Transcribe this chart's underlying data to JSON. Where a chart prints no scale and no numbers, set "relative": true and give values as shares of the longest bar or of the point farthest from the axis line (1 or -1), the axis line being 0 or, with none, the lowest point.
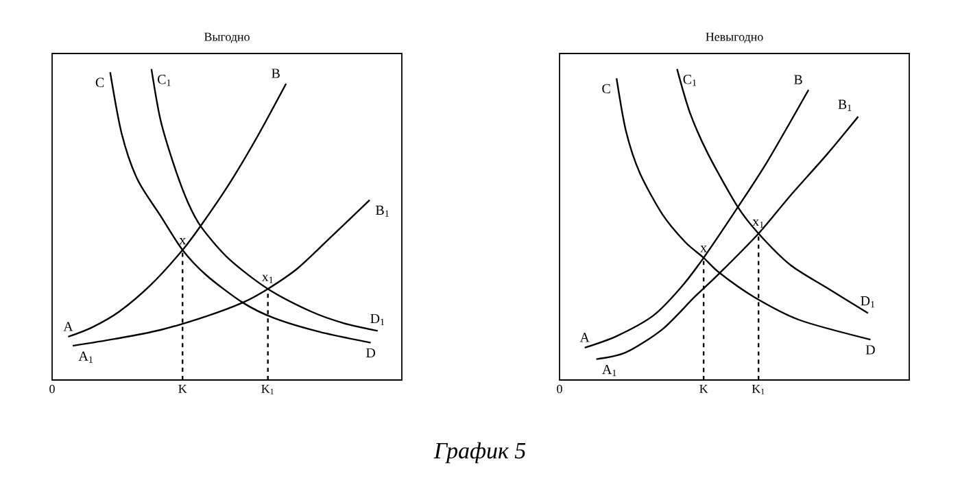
{
  "chart_data": [
    {
      "type": "line",
      "title": "Выгодно",
      "relative": true,
      "xlim": [
        0,
        1
      ],
      "xticks": [
        {
          "value": 0,
          "label": "0"
        },
        {
          "value": 0.373,
          "label": "K"
        },
        {
          "value": 0.617,
          "label": "K$_{1}$"
        }
      ],
      "series": [
        {
          "color": "#000000",
          "x": [
            0.166,
            0.199,
            0.244,
            0.31,
            0.373,
            0.441,
            0.545,
            0.637,
            0.767,
            0.911
          ],
          "values": [
            0.99,
            0.792,
            0.645,
            0.528,
            0.418,
            0.337,
            0.249,
            0.198,
            0.154,
            0.12
          ]
        },
        {
          "color": "#000000",
          "x": [
            0.284,
            0.31,
            0.349,
            0.388,
            0.427,
            0.506,
            0.617,
            0.741,
            0.833,
            0.931
          ],
          "values": [
            1.0,
            0.836,
            0.689,
            0.572,
            0.491,
            0.389,
            0.293,
            0.22,
            0.183,
            0.158
          ]
        },
        {
          "color": "#000000",
          "x": [
            0.046,
            0.114,
            0.192,
            0.284,
            0.373,
            0.427,
            0.506,
            0.584,
            0.669
          ],
          "values": [
            0.139,
            0.169,
            0.22,
            0.308,
            0.418,
            0.499,
            0.63,
            0.777,
            0.953
          ]
        },
        {
          "color": "#000000",
          "x": [
            0.059,
            0.179,
            0.31,
            0.441,
            0.545,
            0.617,
            0.702,
            0.793,
            0.908
          ],
          "values": [
            0.11,
            0.132,
            0.161,
            0.205,
            0.249,
            0.293,
            0.359,
            0.455,
            0.579
          ]
        },
        {
          "color": "#000000",
          "line_style": "dashed",
          "x": [
            0.373,
            0.373
          ],
          "values": [
            0,
            0.418
          ]
        },
        {
          "color": "#000000",
          "line_style": "dashed",
          "x": [
            0.617,
            0.617
          ],
          "values": [
            0,
            0.293
          ]
        }
      ],
      "annotations": [
        {
          "text": "C",
          "x": 0.166,
          "y": 0.99
        },
        {
          "text": "C$_{1}$",
          "x": 0.284,
          "y": 1.0
        },
        {
          "text": "B",
          "x": 0.669,
          "y": 0.953
        },
        {
          "text": "B$_{1}$",
          "x": 0.908,
          "y": 0.579
        },
        {
          "text": "x",
          "x": 0.373,
          "y": 0.418
        },
        {
          "text": "x$_{1}$",
          "x": 0.617,
          "y": 0.293
        },
        {
          "text": "A",
          "x": 0.046,
          "y": 0.139
        },
        {
          "text": "A$_{1}$",
          "x": 0.059,
          "y": 0.11
        },
        {
          "text": "D$_{1}$",
          "x": 0.931,
          "y": 0.158
        },
        {
          "text": "D",
          "x": 0.911,
          "y": 0.12
        },
        "График 5"
      ]
    },
    {
      "type": "line",
      "title": "Невыгодно",
      "relative": true,
      "xlim": [
        0,
        1
      ],
      "xticks": [
        {
          "value": 0,
          "label": "0"
        },
        {
          "value": 0.412,
          "label": "K"
        },
        {
          "value": 0.569,
          "label": "K$_{1}$"
        }
      ],
      "series": [
        {
          "color": "#000000",
          "x": [
            0.163,
            0.19,
            0.229,
            0.294,
            0.359,
            0.412,
            0.458,
            0.556,
            0.686,
            0.889
          ],
          "values": [
            0.97,
            0.8,
            0.667,
            0.533,
            0.444,
            0.393,
            0.344,
            0.267,
            0.193,
            0.13
          ]
        },
        {
          "color": "#000000",
          "x": [
            0.336,
            0.373,
            0.425,
            0.51,
            0.569,
            0.66,
            0.765,
            0.882
          ],
          "values": [
            1.0,
            0.859,
            0.726,
            0.556,
            0.471,
            0.37,
            0.296,
            0.215
          ]
        },
        {
          "color": "#000000",
          "x": [
            0.072,
            0.163,
            0.268,
            0.346,
            0.412,
            0.51,
            0.595,
            0.712
          ],
          "values": [
            0.104,
            0.141,
            0.207,
            0.296,
            0.393,
            0.556,
            0.704,
            0.933
          ]
        },
        {
          "color": "#000000",
          "x": [
            0.105,
            0.19,
            0.294,
            0.386,
            0.458,
            0.569,
            0.66,
            0.765,
            0.854
          ],
          "values": [
            0.067,
            0.089,
            0.163,
            0.267,
            0.344,
            0.471,
            0.593,
            0.726,
            0.847
          ]
        },
        {
          "color": "#000000",
          "line_style": "dashed",
          "x": [
            0.412,
            0.412
          ],
          "values": [
            0,
            0.393
          ]
        },
        {
          "color": "#000000",
          "line_style": "dashed",
          "x": [
            0.569,
            0.569
          ],
          "values": [
            0,
            0.471
          ]
        }
      ],
      "annotations": [
        {
          "text": "C",
          "x": 0.163,
          "y": 0.97
        },
        {
          "text": "C$_{1}$",
          "x": 0.336,
          "y": 1.0
        },
        {
          "text": "B",
          "x": 0.712,
          "y": 0.933
        },
        {
          "text": "B$_{1}$",
          "x": 0.854,
          "y": 0.847
        },
        {
          "text": "x$_{1}$",
          "x": 0.569,
          "y": 0.471
        },
        {
          "text": "x",
          "x": 0.412,
          "y": 0.393
        },
        {
          "text": "A",
          "x": 0.072,
          "y": 0.104
        },
        {
          "text": "A$_{1}$",
          "x": 0.105,
          "y": 0.067
        },
        {
          "text": "D$_{1}$",
          "x": 0.882,
          "y": 0.215
        },
        {
          "text": "D",
          "x": 0.889,
          "y": 0.13
        }
      ]
    }
  ]
}
